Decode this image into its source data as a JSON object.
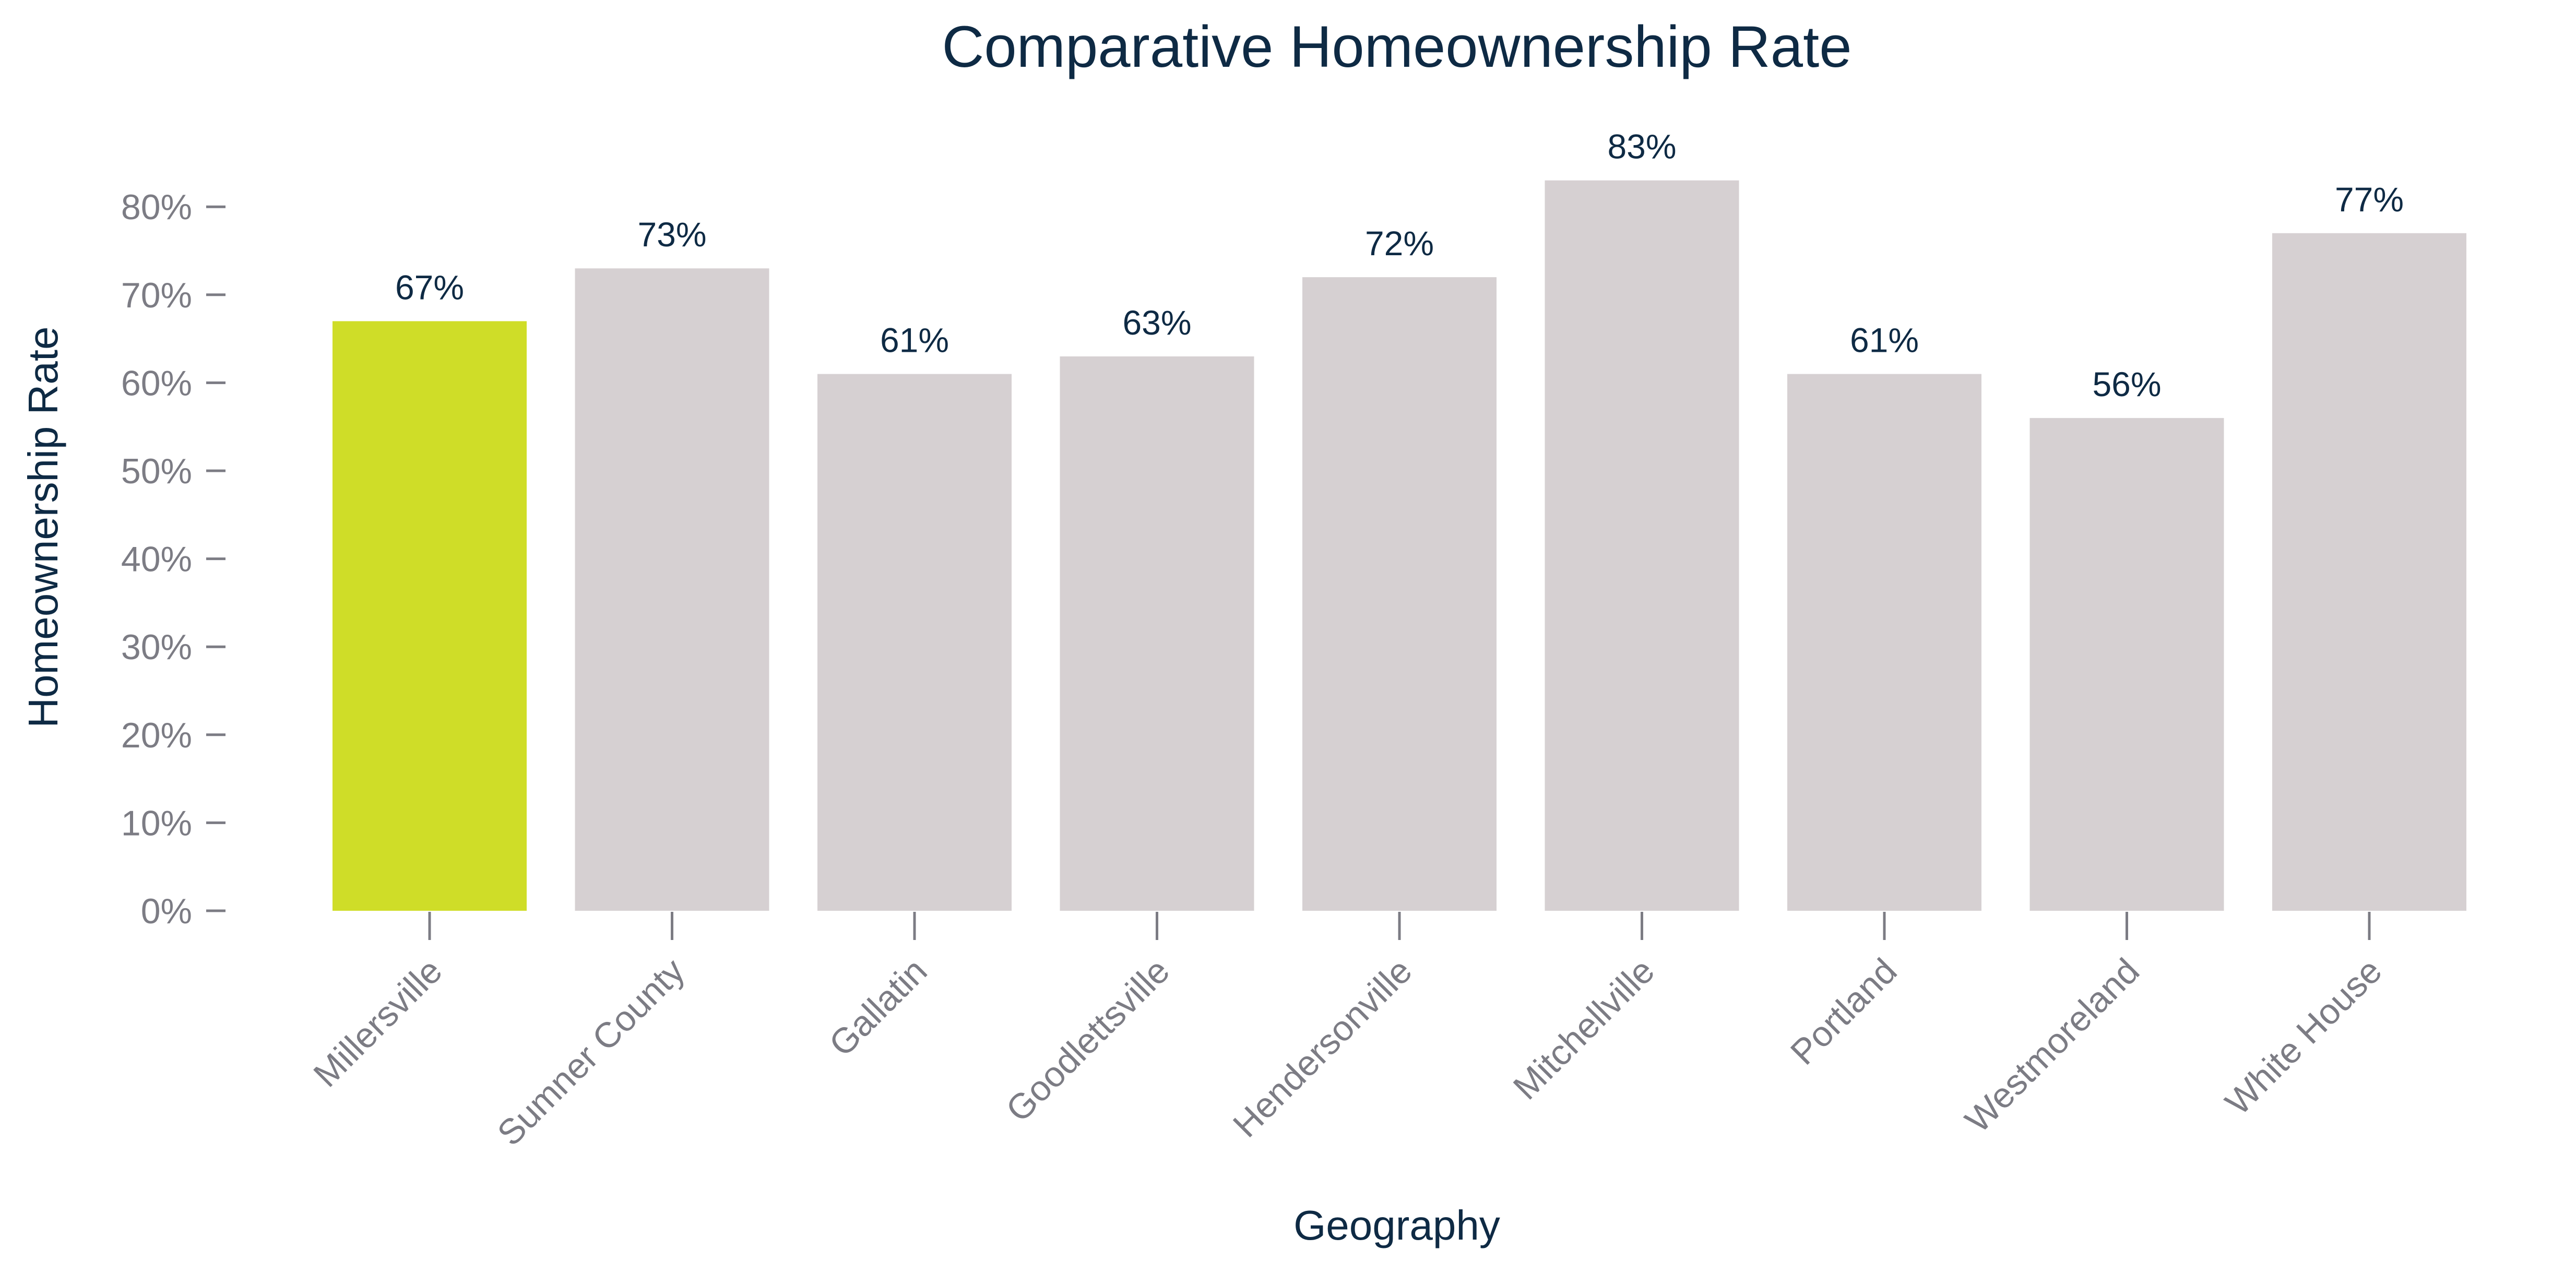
{
  "chart_data": {
    "type": "bar",
    "title": "Comparative Homeownership Rate",
    "xlabel": "Geography",
    "ylabel": "Homeownership Rate",
    "categories": [
      "Millersville",
      "Sumner County",
      "Gallatin",
      "Goodlettsville",
      "Hendersonville",
      "Mitchellville",
      "Portland",
      "Westmoreland",
      "White House"
    ],
    "values": [
      67,
      73,
      61,
      63,
      72,
      83,
      61,
      56,
      77
    ],
    "data_labels": [
      "67%",
      "73%",
      "61%",
      "63%",
      "72%",
      "83%",
      "61%",
      "56%",
      "77%"
    ],
    "yticks": [
      0,
      10,
      20,
      30,
      40,
      50,
      60,
      70,
      80
    ],
    "ytick_labels": [
      "0%",
      "10%",
      "20%",
      "30%",
      "40%",
      "50%",
      "60%",
      "70%",
      "80%"
    ],
    "ylim": [
      0,
      85
    ],
    "grid": false,
    "legend": "none",
    "highlight_category": "Millersville",
    "colors": {
      "highlight": "#cfdd28",
      "bar": "#d6d0d2",
      "title": "#0e2a44",
      "axis_label": "#0e2a44",
      "tick_label": "#7c7c84",
      "tick_mark": "#7c7c84",
      "data_label": "#0e2a44"
    }
  }
}
